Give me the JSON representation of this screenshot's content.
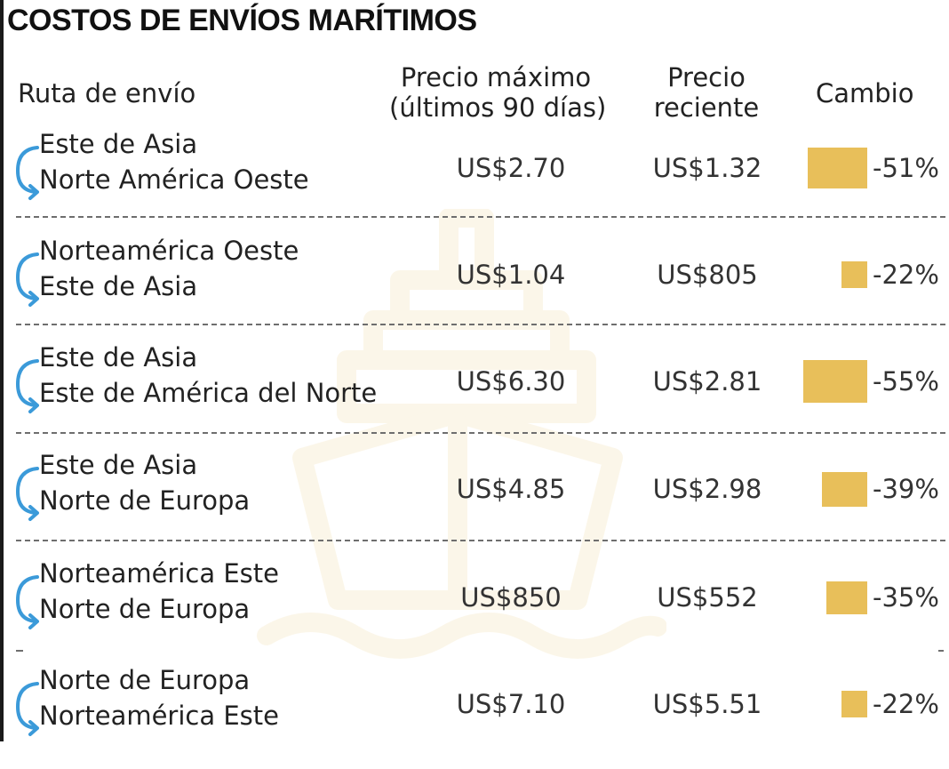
{
  "title": "COSTOS DE ENVÍOS MARÍTIMOS",
  "headers": {
    "route": "Ruta de envío",
    "max_line1": "Precio máximo",
    "max_line2": "(últimos 90 días)",
    "recent_line1": "Precio",
    "recent_line2": "reciente",
    "change": "Cambio"
  },
  "colors": {
    "bar": "#e8bf5a",
    "arrow": "#3b9ad9",
    "watermark": "#e8bf5a"
  },
  "icons": {
    "route": "curved-arrow-icon",
    "watermark": "ship-icon"
  },
  "chart_data": {
    "type": "table",
    "columns": [
      "Ruta de envío",
      "Precio máximo (últimos 90 días)",
      "Precio reciente",
      "Cambio"
    ],
    "rows": [
      {
        "from": "Este de Asia",
        "to": "Norte América Oeste",
        "max_price": "US$2.70",
        "recent_price": "US$1.32",
        "change": -51,
        "change_label": "-51%"
      },
      {
        "from": "Norteamérica Oeste",
        "to": "Este de Asia",
        "max_price": "US$1.04",
        "recent_price": "US$805",
        "change": -22,
        "change_label": "-22%"
      },
      {
        "from": "Este de Asia",
        "to": "Este de América del Norte",
        "max_price": "US$6.30",
        "recent_price": "US$2.81",
        "change": -55,
        "change_label": "-55%"
      },
      {
        "from": "Este de Asia",
        "to": "Norte de Europa",
        "max_price": "US$4.85",
        "recent_price": "US$2.98",
        "change": -39,
        "change_label": "-39%"
      },
      {
        "from": "Norteamérica Este",
        "to": "Norte de Europa",
        "max_price": "US$850",
        "recent_price": "US$552",
        "change": -35,
        "change_label": "-35%"
      },
      {
        "from": "Norte de Europa",
        "to": "Norteamérica Este",
        "max_price": "US$7.10",
        "recent_price": "US$5.51",
        "change": -22,
        "change_label": "-22%"
      }
    ]
  }
}
